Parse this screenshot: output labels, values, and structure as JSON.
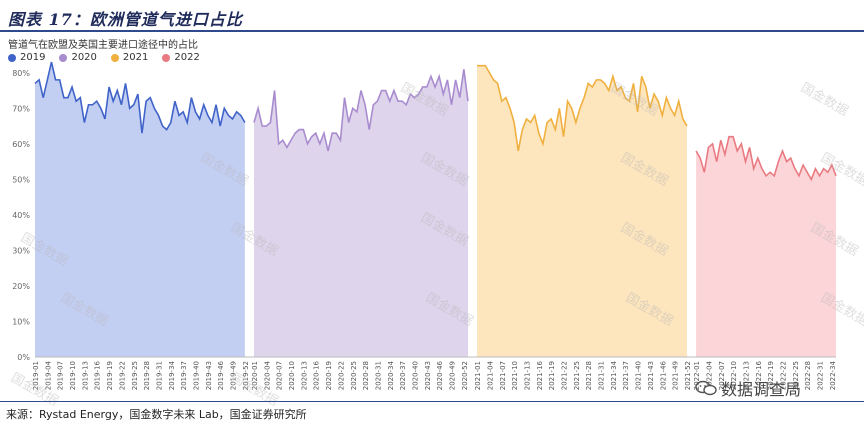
{
  "figure_title": "图表 17：欧洲管道气进口占比",
  "source": "来源：Rystad Energy，国金数字未来 Lab，国金证券研究所",
  "wechat_label": "数据调查局",
  "watermark": "国金数据",
  "colors": {
    "2019": "#3f63c8",
    "2020": "#a98ccf",
    "2021": "#f0b03f",
    "2022": "#ea7a82"
  },
  "chart_data": {
    "type": "area",
    "title": "管道气在欧盟及英国主要进口途径中的占比",
    "ylim": [
      0,
      0.85
    ],
    "yticks": [
      "0%",
      "10%",
      "20%",
      "30%",
      "40%",
      "50%",
      "60%",
      "70%",
      "80%"
    ],
    "legend_position": "top-left",
    "grid": false,
    "series": [
      {
        "name": "2019",
        "x": [
          "2019-01",
          "2019-02",
          "2019-03",
          "2019-04",
          "2019-05",
          "2019-06",
          "2019-07",
          "2019-08",
          "2019-09",
          "2019-10",
          "2019-11",
          "2019-12",
          "2019-13",
          "2019-14",
          "2019-15",
          "2019-16",
          "2019-17",
          "2019-18",
          "2019-19",
          "2019-20",
          "2019-21",
          "2019-22",
          "2019-23",
          "2019-24",
          "2019-25",
          "2019-26",
          "2019-27",
          "2019-28",
          "2019-29",
          "2019-30",
          "2019-31",
          "2019-32",
          "2019-33",
          "2019-34",
          "2019-35",
          "2019-36",
          "2019-37",
          "2019-38",
          "2019-39",
          "2019-40",
          "2019-41",
          "2019-42",
          "2019-43",
          "2019-44",
          "2019-45",
          "2019-46",
          "2019-47",
          "2019-48",
          "2019-49",
          "2019-50",
          "2019-51",
          "2019-52"
        ],
        "values": [
          0.77,
          0.78,
          0.73,
          0.78,
          0.83,
          0.78,
          0.78,
          0.73,
          0.73,
          0.76,
          0.72,
          0.73,
          0.66,
          0.71,
          0.71,
          0.72,
          0.7,
          0.67,
          0.76,
          0.72,
          0.75,
          0.71,
          0.77,
          0.7,
          0.71,
          0.74,
          0.63,
          0.72,
          0.73,
          0.7,
          0.68,
          0.65,
          0.64,
          0.66,
          0.72,
          0.68,
          0.69,
          0.66,
          0.73,
          0.69,
          0.67,
          0.71,
          0.68,
          0.66,
          0.71,
          0.65,
          0.7,
          0.68,
          0.67,
          0.69,
          0.68,
          0.66
        ]
      },
      {
        "name": "2020",
        "x": [
          "2020-01",
          "2020-02",
          "2020-03",
          "2020-04",
          "2020-05",
          "2020-06",
          "2020-07",
          "2020-08",
          "2020-09",
          "2020-10",
          "2020-11",
          "2020-12",
          "2020-13",
          "2020-14",
          "2020-15",
          "2020-16",
          "2020-17",
          "2020-18",
          "2020-19",
          "2020-20",
          "2020-21",
          "2020-22",
          "2020-23",
          "2020-24",
          "2020-25",
          "2020-26",
          "2020-27",
          "2020-28",
          "2020-29",
          "2020-30",
          "2020-31",
          "2020-32",
          "2020-33",
          "2020-34",
          "2020-35",
          "2020-36",
          "2020-37",
          "2020-38",
          "2020-39",
          "2020-40",
          "2020-41",
          "2020-42",
          "2020-43",
          "2020-44",
          "2020-45",
          "2020-46",
          "2020-47",
          "2020-48",
          "2020-49",
          "2020-50",
          "2020-51",
          "2020-52",
          "2020-53"
        ],
        "values": [
          0.66,
          0.7,
          0.65,
          0.65,
          0.66,
          0.75,
          0.6,
          0.61,
          0.59,
          0.61,
          0.63,
          0.64,
          0.64,
          0.6,
          0.62,
          0.63,
          0.6,
          0.63,
          0.58,
          0.63,
          0.63,
          0.61,
          0.73,
          0.66,
          0.7,
          0.69,
          0.75,
          0.71,
          0.64,
          0.71,
          0.72,
          0.75,
          0.75,
          0.72,
          0.75,
          0.72,
          0.72,
          0.71,
          0.74,
          0.73,
          0.74,
          0.76,
          0.76,
          0.79,
          0.76,
          0.79,
          0.74,
          0.78,
          0.71,
          0.78,
          0.73,
          0.81,
          0.72
        ]
      },
      {
        "name": "2021",
        "x": [
          "2021-01",
          "2021-02",
          "2021-03",
          "2021-04",
          "2021-05",
          "2021-06",
          "2021-07",
          "2021-08",
          "2021-09",
          "2021-10",
          "2021-11",
          "2021-12",
          "2021-13",
          "2021-14",
          "2021-15",
          "2021-16",
          "2021-17",
          "2021-18",
          "2021-19",
          "2021-20",
          "2021-21",
          "2021-22",
          "2021-23",
          "2021-24",
          "2021-25",
          "2021-26",
          "2021-27",
          "2021-28",
          "2021-29",
          "2021-30",
          "2021-31",
          "2021-32",
          "2021-33",
          "2021-34",
          "2021-35",
          "2021-36",
          "2021-37",
          "2021-38",
          "2021-39",
          "2021-40",
          "2021-41",
          "2021-42",
          "2021-43",
          "2021-44",
          "2021-45",
          "2021-46",
          "2021-47",
          "2021-48",
          "2021-49",
          "2021-50",
          "2021-51",
          "2021-52"
        ],
        "values": [
          0.82,
          0.82,
          0.82,
          0.8,
          0.78,
          0.77,
          0.72,
          0.73,
          0.7,
          0.66,
          0.58,
          0.64,
          0.67,
          0.66,
          0.68,
          0.63,
          0.6,
          0.66,
          0.67,
          0.64,
          0.7,
          0.62,
          0.72,
          0.7,
          0.66,
          0.7,
          0.73,
          0.77,
          0.76,
          0.78,
          0.78,
          0.77,
          0.75,
          0.79,
          0.75,
          0.76,
          0.73,
          0.72,
          0.77,
          0.69,
          0.79,
          0.76,
          0.7,
          0.74,
          0.72,
          0.68,
          0.73,
          0.7,
          0.68,
          0.72,
          0.67,
          0.65
        ]
      },
      {
        "name": "2022",
        "x": [
          "2022-01",
          "2022-02",
          "2022-03",
          "2022-04",
          "2022-05",
          "2022-06",
          "2022-07",
          "2022-08",
          "2022-09",
          "2022-10",
          "2022-11",
          "2022-12",
          "2022-13",
          "2022-14",
          "2022-15",
          "2022-16",
          "2022-17",
          "2022-18",
          "2022-19",
          "2022-20",
          "2022-21",
          "2022-22",
          "2022-23",
          "2022-24",
          "2022-25",
          "2022-26",
          "2022-27",
          "2022-28",
          "2022-29",
          "2022-30",
          "2022-31",
          "2022-32",
          "2022-33",
          "2022-34",
          "2022-35"
        ],
        "values": [
          0.58,
          0.56,
          0.52,
          0.59,
          0.6,
          0.55,
          0.61,
          0.57,
          0.62,
          0.62,
          0.58,
          0.6,
          0.55,
          0.59,
          0.53,
          0.56,
          0.53,
          0.51,
          0.52,
          0.51,
          0.55,
          0.58,
          0.55,
          0.56,
          0.53,
          0.51,
          0.54,
          0.52,
          0.5,
          0.53,
          0.51,
          0.53,
          0.52,
          0.54,
          0.51
        ]
      }
    ]
  }
}
